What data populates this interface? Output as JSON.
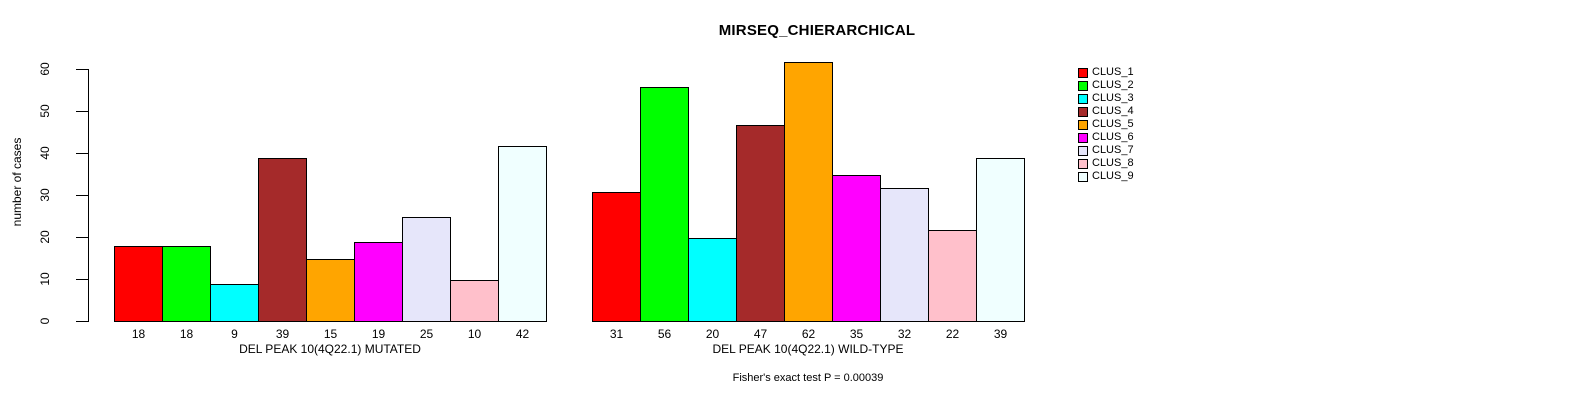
{
  "chart_data": {
    "type": "bar",
    "title": "MIRSEQ_CHIERARCHICAL",
    "ylabel": "number of cases",
    "annotation": "Fisher's exact test P = 0.00039",
    "ylim": [
      0,
      62
    ],
    "yticks": [
      0,
      10,
      20,
      30,
      40,
      50,
      60
    ],
    "grid": false,
    "legend_position": "right",
    "series": [
      {
        "name": "CLUS_1",
        "color": "#FF0000"
      },
      {
        "name": "CLUS_2",
        "color": "#00FF00"
      },
      {
        "name": "CLUS_3",
        "color": "#00FFFF"
      },
      {
        "name": "CLUS_4",
        "color": "#A52A2A"
      },
      {
        "name": "CLUS_5",
        "color": "#FFA500"
      },
      {
        "name": "CLUS_6",
        "color": "#FF00FF"
      },
      {
        "name": "CLUS_7",
        "color": "#E6E6FA"
      },
      {
        "name": "CLUS_8",
        "color": "#FFC0CB"
      },
      {
        "name": "CLUS_9",
        "color": "#F0FFFF"
      }
    ],
    "panels": [
      {
        "xlabel": "DEL PEAK 10(4Q22.1) MUTATED",
        "values": [
          18,
          18,
          9,
          39,
          15,
          19,
          25,
          10,
          42
        ]
      },
      {
        "xlabel": "DEL PEAK 10(4Q22.1) WILD-TYPE",
        "values": [
          31,
          56,
          20,
          47,
          62,
          35,
          32,
          22,
          39
        ]
      }
    ]
  }
}
